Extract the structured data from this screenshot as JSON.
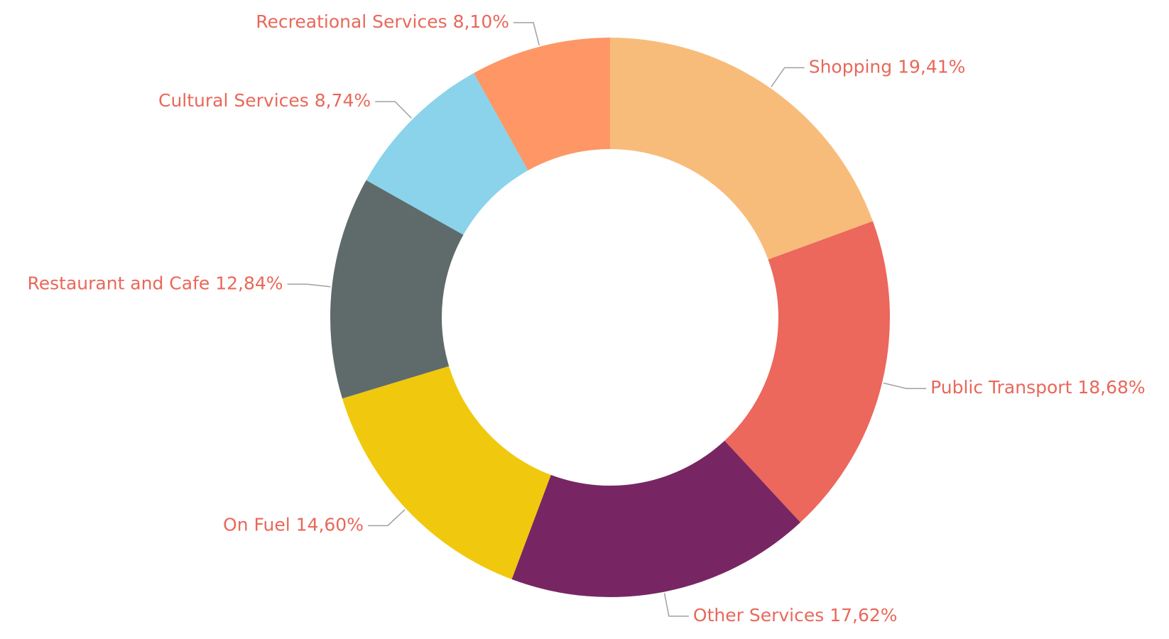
{
  "chart_data": {
    "type": "donut",
    "categories": [
      "Shopping",
      "Public Transport",
      "Other Services",
      "On Fuel",
      "Restaurant and Cafe",
      "Cultural Services",
      "Recreational Services"
    ],
    "values": [
      19.41,
      18.68,
      17.62,
      14.6,
      12.84,
      8.74,
      8.1
    ],
    "value_labels": [
      "19,41%",
      "18,68%",
      "17,62%",
      "14,60%",
      "12,84%",
      "8,74%",
      "8,10%"
    ],
    "colors": [
      "#f8bc7a",
      "#ec675c",
      "#782663",
      "#f0c90e",
      "#5f6b6b",
      "#8ad3eb",
      "#fe9666"
    ]
  }
}
